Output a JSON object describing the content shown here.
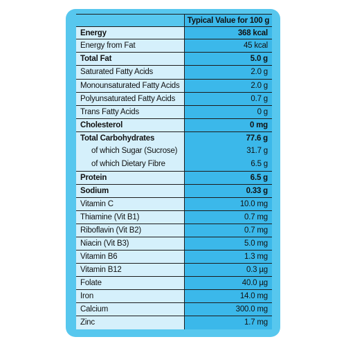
{
  "table": {
    "header_value": "Typical Value for 100 g",
    "rows": [
      {
        "label": "Energy",
        "value": "368 kcal"
      },
      {
        "label": "Energy from Fat",
        "value": "45 kcal"
      },
      {
        "label": "Total Fat",
        "value": "5.0 g"
      },
      {
        "label": "Saturated Fatty Acids",
        "value": "2.0 g"
      },
      {
        "label": "Monounsaturated Fatty Acids",
        "value": "2.0 g"
      },
      {
        "label": "Polyunsaturated Fatty Acids",
        "value": "0.7 g"
      },
      {
        "label": "Trans Fatty Acids",
        "value": "0 g"
      },
      {
        "label": "Cholesterol",
        "value": "0 mg"
      },
      {
        "label": "Total Carbohydrates",
        "value": "77.6 g"
      },
      {
        "label": "of which Sugar (Sucrose)",
        "value": "31.7 g"
      },
      {
        "label": "of which Dietary Fibre",
        "value": "6.5 g"
      },
      {
        "label": "Protein",
        "value": "6.5 g"
      },
      {
        "label": "Sodium",
        "value": "0.33 g"
      },
      {
        "label": "Vitamin C",
        "value": "10.0 mg"
      },
      {
        "label": "Thiamine (Vit B1)",
        "value": "0.7 mg"
      },
      {
        "label": "Riboflavin (Vit B2)",
        "value": "0.7 mg"
      },
      {
        "label": "Niacin (Vit B3)",
        "value": "5.0 mg"
      },
      {
        "label": "Vitamin B6",
        "value": "1.3 mg"
      },
      {
        "label": "Vitamin B12",
        "value": "0.3 µg"
      },
      {
        "label": "Folate",
        "value": "40.0 µg"
      },
      {
        "label": "Iron",
        "value": "14.0 mg"
      },
      {
        "label": "Calcium",
        "value": "300.0 mg"
      },
      {
        "label": "Zinc",
        "value": "1.7 mg"
      }
    ]
  },
  "colors": {
    "panel_border": "#57c7ee",
    "label_background": "#d5f0fb",
    "value_background": "#3bb8ea",
    "rule": "#1c1c1c"
  }
}
